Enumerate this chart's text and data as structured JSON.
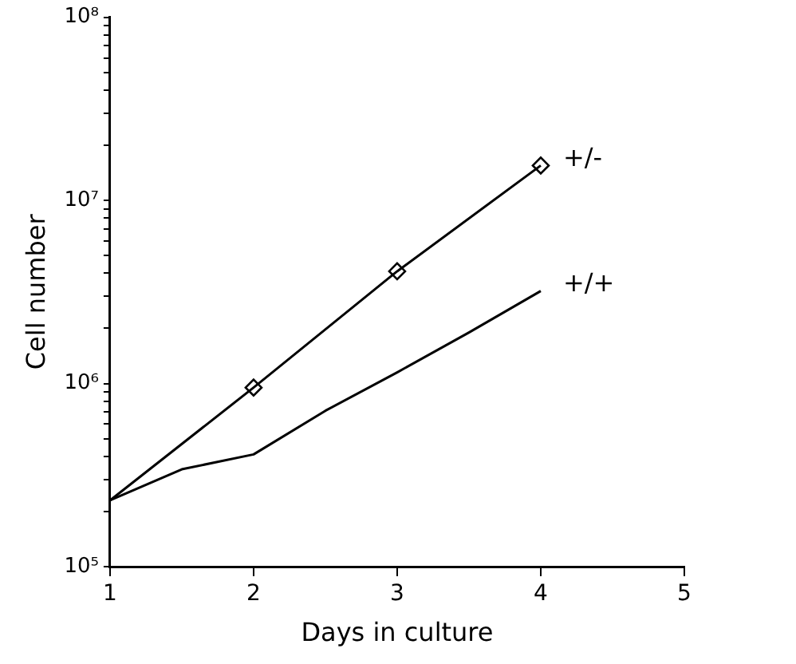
{
  "chart_data": {
    "type": "line",
    "xlabel": "Days in culture",
    "ylabel": "Cell number",
    "log": "y",
    "grid": false,
    "legend": false,
    "xlim": [
      1,
      5
    ],
    "xticks": [
      1,
      2,
      3,
      4,
      5
    ],
    "ylim": [
      100000,
      100000000
    ],
    "yticks": [
      {
        "value": 100000,
        "label": "10⁵"
      },
      {
        "value": 200000,
        "label": null
      },
      {
        "value": 300000,
        "label": null
      },
      {
        "value": 400000,
        "label": null
      },
      {
        "value": 500000,
        "label": null
      },
      {
        "value": 600000,
        "label": null
      },
      {
        "value": 700000,
        "label": null
      },
      {
        "value": 800000,
        "label": null
      },
      {
        "value": 900000,
        "label": null
      },
      {
        "value": 1000000,
        "label": "10⁶"
      },
      {
        "value": 2000000,
        "label": null
      },
      {
        "value": 3000000,
        "label": null
      },
      {
        "value": 4000000,
        "label": null
      },
      {
        "value": 5000000,
        "label": null
      },
      {
        "value": 6000000,
        "label": null
      },
      {
        "value": 7000000,
        "label": null
      },
      {
        "value": 8000000,
        "label": null
      },
      {
        "value": 9000000,
        "label": null
      },
      {
        "value": 10000000,
        "label": "10⁷"
      },
      {
        "value": 20000000,
        "label": null
      },
      {
        "value": 30000000,
        "label": null
      },
      {
        "value": 40000000,
        "label": null
      },
      {
        "value": 50000000,
        "label": null
      },
      {
        "value": 60000000,
        "label": null
      },
      {
        "value": 70000000,
        "label": null
      },
      {
        "value": 80000000,
        "label": null
      },
      {
        "value": 90000000,
        "label": null
      },
      {
        "value": 100000000,
        "label": "10⁸"
      }
    ],
    "series": [
      {
        "name": "+/-",
        "type": "line",
        "color": "#000000",
        "marker": "none",
        "line_style": "solid",
        "x": [
          1,
          2,
          3,
          4
        ],
        "values": [
          230000,
          950000,
          4100000,
          15500000
        ]
      },
      {
        "type": "scatter",
        "color": "#000000",
        "marker": "diamond",
        "x": [
          2,
          3,
          4
        ],
        "values": [
          950000,
          4100000,
          15500000
        ]
      },
      {
        "name": "+/+",
        "type": "line",
        "color": "#000000",
        "marker": "none",
        "line_style": "solid",
        "x": [
          1,
          1.5,
          2,
          2.5,
          3,
          3.5,
          4
        ],
        "values": [
          230000,
          340000,
          410000,
          710000,
          1150000,
          1900000,
          3200000
        ]
      }
    ]
  }
}
